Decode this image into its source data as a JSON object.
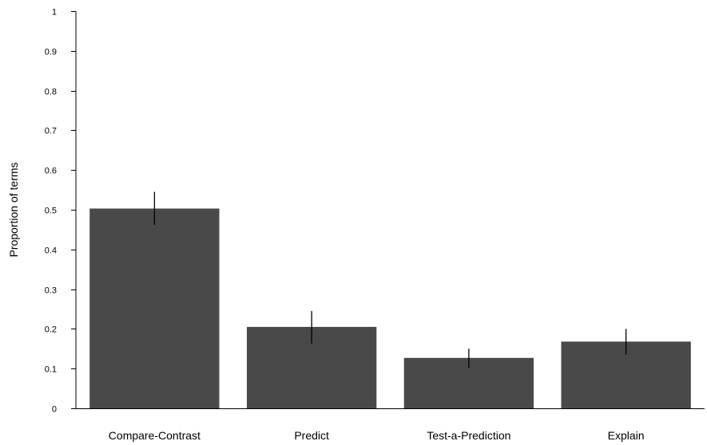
{
  "chart_data": {
    "type": "bar",
    "title": "",
    "xlabel": "",
    "ylabel": "Proportion of terms",
    "categories": [
      "Compare-Contrast",
      "Predict",
      "Test-a-Prediction",
      "Explain"
    ],
    "values": [
      0.503,
      0.205,
      0.127,
      0.168
    ],
    "error_bars": [
      {
        "low": 0.462,
        "high": 0.545
      },
      {
        "low": 0.163,
        "high": 0.245
      },
      {
        "low": 0.102,
        "high": 0.15
      },
      {
        "low": 0.135,
        "high": 0.2
      }
    ],
    "ylim": [
      0,
      1
    ],
    "yticks": [
      "0",
      "0.1",
      "0.2",
      "0.3",
      "0.4",
      "0.5",
      "0.6",
      "0.7",
      "0.8",
      "0.9",
      "1"
    ],
    "grid": false,
    "legend": "none",
    "colors": {
      "bar": "#494949",
      "error_bar": "#000000",
      "axis": "#000000"
    }
  }
}
